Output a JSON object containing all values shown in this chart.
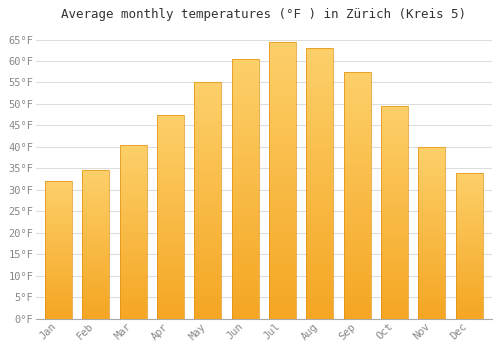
{
  "title": "Average monthly temperatures (°F ) in Zürich (Kreis 5)",
  "months": [
    "Jan",
    "Feb",
    "Mar",
    "Apr",
    "May",
    "Jun",
    "Jul",
    "Aug",
    "Sep",
    "Oct",
    "Nov",
    "Dec"
  ],
  "values": [
    32,
    34.5,
    40.5,
    47.5,
    55,
    60.5,
    64.5,
    63,
    57.5,
    49.5,
    40,
    34
  ],
  "bar_color_bottom": "#F5A623",
  "bar_color_top": "#FDD06A",
  "bar_edge_color": "#E09010",
  "background_color": "#FFFFFF",
  "plot_bg_color": "#FFFFFF",
  "grid_color": "#DDDDDD",
  "ylim": [
    0,
    68
  ],
  "yticks": [
    0,
    5,
    10,
    15,
    20,
    25,
    30,
    35,
    40,
    45,
    50,
    55,
    60,
    65
  ],
  "ytick_labels": [
    "0°F",
    "5°F",
    "10°F",
    "15°F",
    "20°F",
    "25°F",
    "30°F",
    "35°F",
    "40°F",
    "45°F",
    "50°F",
    "55°F",
    "60°F",
    "65°F"
  ],
  "title_fontsize": 9,
  "tick_fontsize": 7.5,
  "tick_color": "#888888",
  "title_color": "#333333",
  "bar_width": 0.72
}
